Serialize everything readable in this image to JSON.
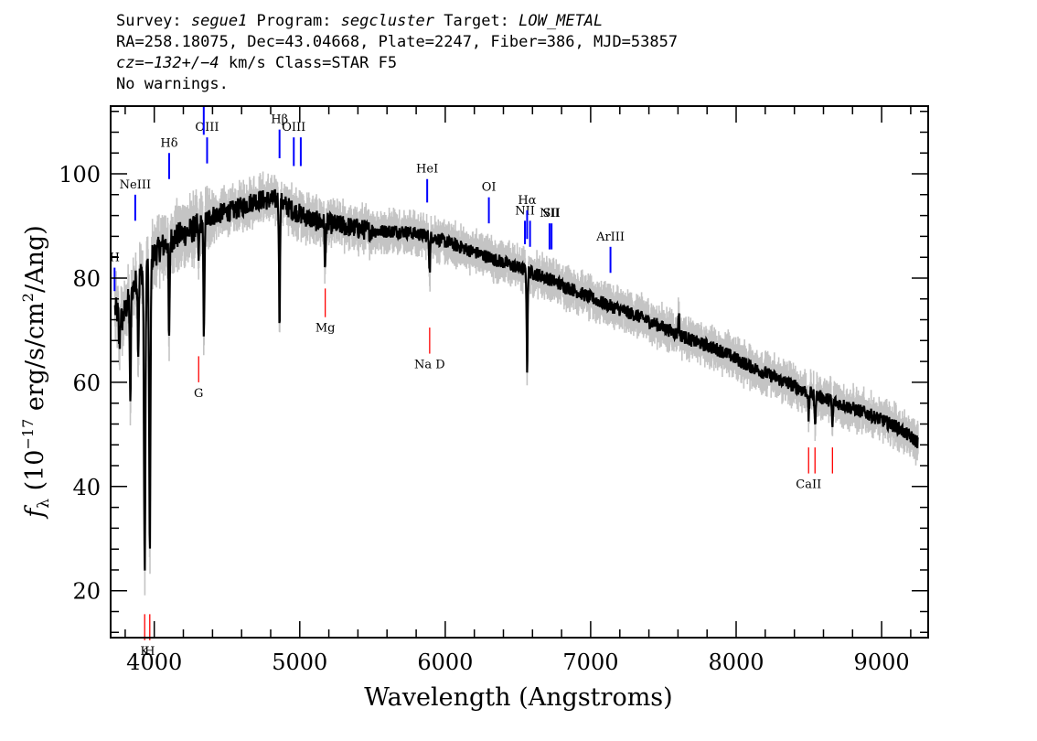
{
  "header": {
    "line1": {
      "survey_label": "Survey: ",
      "survey": "segue1",
      "program_label": " Program: ",
      "program": "segcluster",
      "target_label": " Target: ",
      "target": "LOW_METAL"
    },
    "line2": "RA=258.18075, Dec=43.04668, Plate=2247, Fiber=386, MJD=53857",
    "line3": {
      "cz": "cz=−132+/−4",
      "rest": " km/s Class=STAR F5"
    },
    "line4": "No warnings."
  },
  "chart_data": {
    "type": "line",
    "xlabel": "Wavelength (Angstroms)",
    "ylabel_parts": {
      "f": "f",
      "lambda": "λ",
      "open": " (10",
      "exp": "−17",
      "mid": " erg/s/cm",
      "sq": "2",
      "close": "/Ang)"
    },
    "xlim": [
      3700,
      9320
    ],
    "ylim": [
      11,
      113
    ],
    "x_ticks": [
      4000,
      5000,
      6000,
      7000,
      8000,
      9000
    ],
    "y_ticks": [
      20,
      40,
      60,
      80,
      100
    ],
    "grid": false,
    "colors": {
      "flux": "#000000",
      "error_band": "#c4c4c4",
      "emission_line": "#0000ff",
      "absorption_line": "#ff0000"
    },
    "continuum": [
      [
        3730,
        74
      ],
      [
        3780,
        72
      ],
      [
        3850,
        78
      ],
      [
        3950,
        83
      ],
      [
        4050,
        86
      ],
      [
        4150,
        88
      ],
      [
        4250,
        89
      ],
      [
        4400,
        92
      ],
      [
        4550,
        93
      ],
      [
        4700,
        95
      ],
      [
        4850,
        95
      ],
      [
        4950,
        93
      ],
      [
        5100,
        91
      ],
      [
        5300,
        90
      ],
      [
        5500,
        89
      ],
      [
        5700,
        89
      ],
      [
        5900,
        88
      ],
      [
        6100,
        86
      ],
      [
        6300,
        84
      ],
      [
        6500,
        82
      ],
      [
        6700,
        80
      ],
      [
        6900,
        77.5
      ],
      [
        7100,
        75
      ],
      [
        7300,
        73
      ],
      [
        7500,
        70.5
      ],
      [
        7700,
        68
      ],
      [
        7900,
        66
      ],
      [
        8100,
        63
      ],
      [
        8300,
        60.5
      ],
      [
        8500,
        58
      ],
      [
        8700,
        56
      ],
      [
        8900,
        54
      ],
      [
        9100,
        51.5
      ],
      [
        9250,
        48.5
      ]
    ],
    "absorption_features": [
      {
        "x": 3760,
        "depth": 6
      },
      {
        "x": 3835,
        "depth": 22
      },
      {
        "x": 3890,
        "depth": 14
      },
      {
        "x": 3934,
        "depth": 58
      },
      {
        "x": 3969,
        "depth": 55
      },
      {
        "x": 4102,
        "depth": 20
      },
      {
        "x": 4305,
        "depth": 6
      },
      {
        "x": 4341,
        "depth": 23
      },
      {
        "x": 4861,
        "depth": 23
      },
      {
        "x": 5175,
        "depth": 9
      },
      {
        "x": 5893,
        "depth": 7
      },
      {
        "x": 6563,
        "depth": 19
      },
      {
        "x": 8498,
        "depth": 5
      },
      {
        "x": 8542,
        "depth": 6
      },
      {
        "x": 8662,
        "depth": 5
      }
    ],
    "emission_bumps": [
      {
        "x": 7605,
        "height": 4
      }
    ],
    "emission_lines": [
      {
        "label": "H",
        "x": 3727,
        "y_top": 82,
        "y_bottom": 77.5
      },
      {
        "label": "NeIII",
        "x": 3869,
        "y_top": 96,
        "y_bottom": 91
      },
      {
        "label": "Hδ",
        "x": 4102,
        "y_top": 104,
        "y_bottom": 99
      },
      {
        "label": "OIII",
        "x": 4363,
        "y_top": 107,
        "y_bottom": 102
      },
      {
        "label": "",
        "x": 4340,
        "y_top": 113,
        "y_bottom": 107.5
      },
      {
        "label": "Hβ",
        "x": 4861,
        "y_top": 108.5,
        "y_bottom": 103
      },
      {
        "label": "OIII",
        "x": 4959,
        "y_top": 107,
        "y_bottom": 101.5
      },
      {
        "label": "",
        "x": 5007,
        "y_top": 107,
        "y_bottom": 101.5
      },
      {
        "label": "HeI",
        "x": 5876,
        "y_top": 99,
        "y_bottom": 94.5
      },
      {
        "label": "OI",
        "x": 6300,
        "y_top": 95.5,
        "y_bottom": 90.5
      },
      {
        "label": "NII",
        "x": 6548,
        "y_top": 91,
        "y_bottom": 86.5
      },
      {
        "label": "Hα",
        "x": 6563,
        "y_top": 93,
        "y_bottom": 87.5
      },
      {
        "label": "",
        "x": 6583,
        "y_top": 91,
        "y_bottom": 86
      },
      {
        "label": "NII",
        "x": 6717,
        "y_top": 90.5,
        "y_bottom": 85.5
      },
      {
        "label": "SII",
        "x": 6731,
        "y_top": 90.5,
        "y_bottom": 85.5
      },
      {
        "label": "ArIII",
        "x": 7136,
        "y_top": 86,
        "y_bottom": 81
      }
    ],
    "absorption_lines": [
      {
        "label": "K",
        "x": 3934,
        "y_top": 15.5,
        "y_bottom": 10.5
      },
      {
        "label": "H",
        "x": 3969,
        "y_top": 15.5,
        "y_bottom": 10.5
      },
      {
        "label": "G",
        "x": 4305,
        "y_top": 65,
        "y_bottom": 60
      },
      {
        "label": "Mg",
        "x": 5175,
        "y_top": 78,
        "y_bottom": 72.5
      },
      {
        "label": "Na D",
        "x": 5893,
        "y_top": 70.5,
        "y_bottom": 65.5
      },
      {
        "label": "CaII",
        "x": 8498,
        "y_top": 47.5,
        "y_bottom": 42.5
      },
      {
        "label": "",
        "x": 8542,
        "y_top": 47.5,
        "y_bottom": 42.5
      },
      {
        "label": "",
        "x": 8662,
        "y_top": 47.5,
        "y_bottom": 42.5
      }
    ]
  }
}
